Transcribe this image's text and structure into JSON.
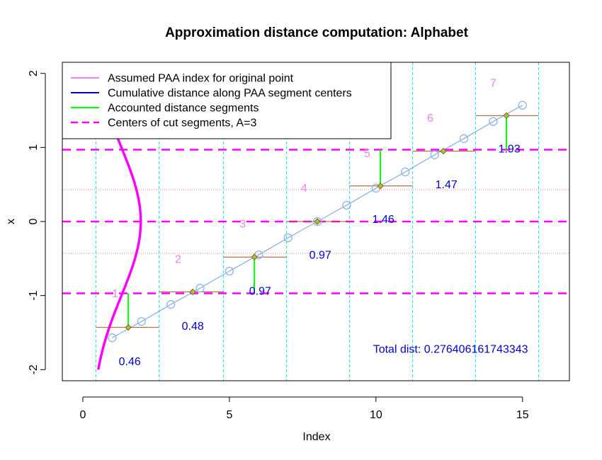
{
  "chart_data": {
    "type": "scatter",
    "title": "Approximation distance computation: Alphabet",
    "xlabel": "Index",
    "ylabel": "x",
    "xlim": [
      -0.7,
      16.6
    ],
    "ylim": [
      -2.15,
      2.15
    ],
    "xticks": [
      0,
      5,
      10,
      15
    ],
    "yticks": [
      -2,
      -1,
      0,
      1,
      2
    ],
    "series": [
      {
        "name": "Assumed PAA index for original point",
        "type": "line-points",
        "x": [
          1,
          2,
          3,
          4,
          5,
          6,
          7,
          8,
          9,
          10,
          11,
          12,
          13,
          14,
          15
        ],
        "y": [
          -1.57,
          -1.35,
          -1.12,
          -0.9,
          -0.67,
          -0.45,
          -0.22,
          0.0,
          0.22,
          0.45,
          0.67,
          0.9,
          1.12,
          1.35,
          1.57
        ]
      }
    ],
    "paa_segments": [
      {
        "x0": 0.45,
        "x1": 2.6,
        "y": -1.43
      },
      {
        "x0": 2.6,
        "x1": 4.8,
        "y": -0.95
      },
      {
        "x0": 4.8,
        "x1": 6.95,
        "y": -0.48
      },
      {
        "x0": 6.95,
        "x1": 9.1,
        "y": 0.0
      },
      {
        "x0": 9.1,
        "x1": 11.25,
        "y": 0.48
      },
      {
        "x0": 11.25,
        "x1": 13.4,
        "y": 0.95
      },
      {
        "x0": 13.4,
        "x1": 15.55,
        "y": 1.43
      }
    ],
    "paa_centers": [
      {
        "x": 1.55,
        "y": -1.43
      },
      {
        "x": 3.75,
        "y": -0.95
      },
      {
        "x": 5.85,
        "y": -0.48
      },
      {
        "x": 8.0,
        "y": 0.0
      },
      {
        "x": 10.15,
        "y": 0.48
      },
      {
        "x": 12.3,
        "y": 0.95
      },
      {
        "x": 14.45,
        "y": 1.43
      }
    ],
    "accounted_segments": [
      {
        "x": 1.55,
        "y0": -1.43,
        "y1": -0.97
      },
      {
        "x": 5.85,
        "y0": -0.48,
        "y1": -0.97
      },
      {
        "x": 10.15,
        "y0": 0.48,
        "y1": 0.97
      },
      {
        "x": 14.45,
        "y0": 1.43,
        "y1": 0.97
      }
    ],
    "segment_boundaries_x": [
      0.45,
      2.6,
      4.8,
      6.95,
      9.1,
      11.25,
      13.4,
      15.55
    ],
    "cut_centers_y": [
      -0.97,
      0.0,
      0.97
    ],
    "cut_lines_y": [
      -0.43,
      0.43
    ],
    "segment_numbers": [
      {
        "x": 1.1,
        "y": -0.98,
        "text": "1"
      },
      {
        "x": 3.25,
        "y": -0.52,
        "text": "2"
      },
      {
        "x": 5.45,
        "y": -0.04,
        "text": "3"
      },
      {
        "x": 7.55,
        "y": 0.44,
        "text": "4"
      },
      {
        "x": 9.7,
        "y": 0.91,
        "text": "5"
      },
      {
        "x": 11.85,
        "y": 1.39,
        "text": "6"
      },
      {
        "x": 14.0,
        "y": 1.86,
        "text": "7"
      }
    ],
    "distance_labels": [
      {
        "x": 1.6,
        "y": -1.9,
        "text": "0.46"
      },
      {
        "x": 3.75,
        "y": -1.42,
        "text": "0.48"
      },
      {
        "x": 6.05,
        "y": -0.95,
        "text": "0.97"
      },
      {
        "x": 8.1,
        "y": -0.46,
        "text": "0.97"
      },
      {
        "x": 10.25,
        "y": 0.02,
        "text": "1.46"
      },
      {
        "x": 12.4,
        "y": 0.49,
        "text": "1.47"
      },
      {
        "x": 14.55,
        "y": 0.97,
        "text": "1.93"
      }
    ],
    "total_label": {
      "x": 9.9,
      "y": -1.73,
      "text": "Total dist: 0.276406161743343"
    },
    "normal_curve": {
      "center_x": 0.3,
      "scale_x": 4.2,
      "y_from": -2.0,
      "y_to": 1.2
    },
    "legend": {
      "position": "top-left",
      "entries": [
        {
          "label": "Assumed PAA index for original point",
          "color": "#ee82ee",
          "style": "solid"
        },
        {
          "label": "Cumulative distance along PAA segment centers",
          "color": "#0000cd",
          "style": "solid"
        },
        {
          "label": "Accounted distance segments",
          "color": "#00ff00",
          "style": "solid"
        },
        {
          "label": "Centers of cut segments, A=3",
          "color": "#ff00ff",
          "style": "dashed"
        }
      ]
    },
    "colors": {
      "series_line": "#6ca0dc",
      "points": "#8fb4e8",
      "paa": "#a0522d",
      "centers_fill": "#9acd32",
      "accounted": "#00ff00",
      "cut_center": "#ff00ff",
      "cut_line": "#f08080",
      "boundary": "#00e5ee",
      "curve": "#ff00ff"
    }
  }
}
